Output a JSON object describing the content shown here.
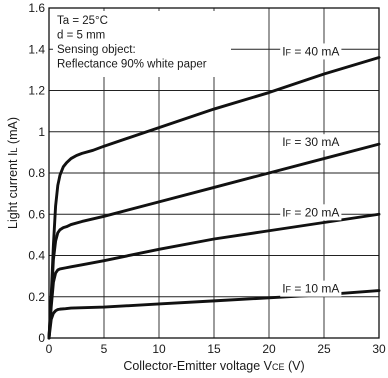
{
  "chart_data": {
    "type": "line",
    "xlabel_main": "Collector-Emitter voltage V",
    "xlabel_sub": "CE",
    "xlabel_unit": " (V)",
    "ylabel_main": "Light current I",
    "ylabel_sub": "L",
    "ylabel_unit": " (mA)",
    "xlim": [
      0,
      30
    ],
    "ylim": [
      0,
      1.6
    ],
    "xticks": [
      "0",
      "5",
      "10",
      "15",
      "20",
      "25",
      "30"
    ],
    "yticks": [
      "0",
      "0.2",
      "0.4",
      "0.6",
      "0.8",
      "1",
      "1.2",
      "1.4",
      "1.6"
    ],
    "grid": true,
    "conditions": [
      "Ta = 25°C",
      "d = 5 mm",
      "Sensing object:",
      "Reflectance 90% white paper"
    ],
    "series": [
      {
        "name": "IF = 40 mA",
        "label_main": "I",
        "label_sub": "F",
        "label_rest": " = 40 mA",
        "x": [
          0,
          0.2,
          0.4,
          0.6,
          0.8,
          1.0,
          1.3,
          1.6,
          2.0,
          2.5,
          3.0,
          4.0,
          5.0,
          10,
          15,
          20,
          25,
          30
        ],
        "y": [
          0,
          0.2,
          0.45,
          0.64,
          0.74,
          0.79,
          0.83,
          0.85,
          0.87,
          0.885,
          0.895,
          0.91,
          0.93,
          1.02,
          1.11,
          1.19,
          1.28,
          1.36
        ]
      },
      {
        "name": "IF = 30 mA",
        "label_main": "I",
        "label_sub": "F",
        "label_rest": " = 30 mA",
        "x": [
          0,
          0.2,
          0.4,
          0.6,
          0.8,
          1.0,
          1.3,
          1.6,
          2.0,
          3.0,
          5.0,
          10,
          15,
          20,
          25,
          30
        ],
        "y": [
          0,
          0.18,
          0.38,
          0.47,
          0.51,
          0.525,
          0.535,
          0.54,
          0.55,
          0.565,
          0.59,
          0.66,
          0.73,
          0.8,
          0.87,
          0.94
        ]
      },
      {
        "name": "IF = 20 mA",
        "label_main": "I",
        "label_sub": "F",
        "label_rest": " = 20 mA",
        "x": [
          0,
          0.2,
          0.4,
          0.6,
          0.8,
          1.0,
          1.5,
          2.0,
          3.0,
          5.0,
          10,
          15,
          20,
          25,
          30
        ],
        "y": [
          0,
          0.15,
          0.27,
          0.315,
          0.33,
          0.335,
          0.34,
          0.345,
          0.355,
          0.375,
          0.43,
          0.48,
          0.52,
          0.56,
          0.6
        ]
      },
      {
        "name": "IF = 10 mA",
        "label_main": "I",
        "label_sub": "F",
        "label_rest": " = 10 mA",
        "x": [
          0,
          0.2,
          0.4,
          0.6,
          0.8,
          1.0,
          1.5,
          2.0,
          5.0,
          10,
          15,
          20,
          25,
          30
        ],
        "y": [
          0,
          0.09,
          0.12,
          0.132,
          0.138,
          0.14,
          0.142,
          0.145,
          0.15,
          0.165,
          0.18,
          0.195,
          0.21,
          0.23
        ]
      }
    ],
    "label_positions_data": [
      {
        "x": 21.2,
        "y": 1.37
      },
      {
        "x": 21.2,
        "y": 0.93
      },
      {
        "x": 21.2,
        "y": 0.59
      },
      {
        "x": 21.2,
        "y": 0.22
      }
    ]
  }
}
